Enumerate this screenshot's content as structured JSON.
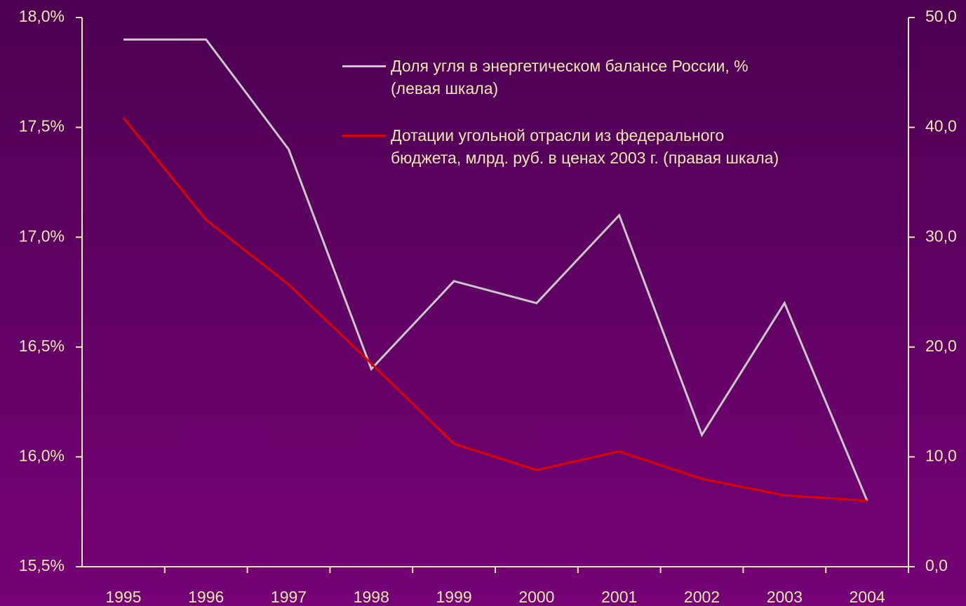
{
  "chart_data": {
    "type": "line",
    "categories": [
      "1995",
      "1996",
      "1997",
      "1998",
      "1999",
      "2000",
      "2001",
      "2002",
      "2003",
      "2004"
    ],
    "series": [
      {
        "name": "Доля угля в энергетическом балансе России, %\n(левая шкала)",
        "color": "#c8c8c8",
        "values": [
          17.9,
          17.9,
          17.4,
          16.4,
          16.8,
          16.7,
          17.1,
          16.1,
          16.7,
          15.8
        ]
      },
      {
        "name": "Дотации угольной отрасли из федерального\nбюджета, млрд. руб. в ценах 2003 г. (правая шкала)",
        "color": "#e00000",
        "axis": "y2",
        "values": [
          40.9,
          31.6,
          25.7,
          18.5,
          11.2,
          8.8,
          10.5,
          8.0,
          6.5,
          6.0
        ]
      }
    ],
    "ylim": [
      15.5,
      18.0
    ],
    "yticks": [
      {
        "value": 15.5,
        "label": "15,5%"
      },
      {
        "value": 16.0,
        "label": "16,0%"
      },
      {
        "value": 16.5,
        "label": "16,5%"
      },
      {
        "value": 17.0,
        "label": "17,0%"
      },
      {
        "value": 17.5,
        "label": "17,5%"
      },
      {
        "value": 18.0,
        "label": "18,0%"
      }
    ],
    "y2lim": [
      0,
      50
    ],
    "y2ticks": [
      {
        "value": 0,
        "label": "0,0"
      },
      {
        "value": 10,
        "label": "10,0"
      },
      {
        "value": 20,
        "label": "20,0"
      },
      {
        "value": 30,
        "label": "30,0"
      },
      {
        "value": 40,
        "label": "40,0"
      },
      {
        "value": 50,
        "label": "50,0"
      }
    ],
    "grid": false,
    "legend": "top-right"
  }
}
